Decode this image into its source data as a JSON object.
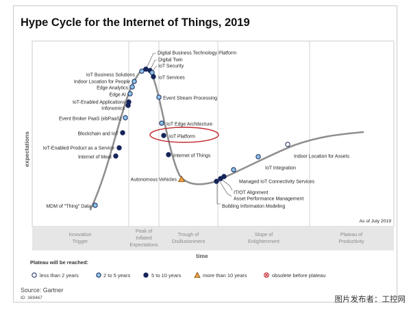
{
  "title": "Hype Cycle for the Internet of Things, 2019",
  "y_axis_label": "expectations",
  "x_axis_label": "time",
  "as_of": "As of July 2019",
  "phases": [
    {
      "line1": "Innovation",
      "line2": "Trigger",
      "line3": ""
    },
    {
      "line1": "Peak of",
      "line2": "Inflated",
      "line3": "Expectations"
    },
    {
      "line1": "Trough of",
      "line2": "Disillusionment",
      "line3": ""
    },
    {
      "line1": "Slope of",
      "line2": "Enlightenment",
      "line3": ""
    },
    {
      "line1": "Plateau of",
      "line2": "Productivity",
      "line3": ""
    }
  ],
  "legend": {
    "title": "Plateau will be reached:",
    "items": [
      {
        "key": "lt2",
        "label": "less than 2 years"
      },
      {
        "key": "2to5",
        "label": "2 to 5 years"
      },
      {
        "key": "5to10",
        "label": "5 to 10 years"
      },
      {
        "key": "gt10",
        "label": "more than 10 years"
      },
      {
        "key": "obsolete",
        "label": "obsolete before plateau"
      }
    ]
  },
  "colors": {
    "curve": "#8f8f8f",
    "lt2": "#ffffff",
    "2to5": "#8ec3e6",
    "5to10": "#15245a",
    "gt10": "#f0a040",
    "highlight": "#c0272d"
  },
  "technologies": [
    {
      "name": "Digital Business Technology Platform",
      "category": "5to10"
    },
    {
      "name": "Digital Twin",
      "category": "5to10"
    },
    {
      "name": "IoT Security",
      "category": "2to5"
    },
    {
      "name": "IoT Business Solutions",
      "category": "2to5"
    },
    {
      "name": "IoT Services",
      "category": "5to10"
    },
    {
      "name": "Indoor Location for People",
      "category": "2to5"
    },
    {
      "name": "Edge Analytics",
      "category": "2to5"
    },
    {
      "name": "Edge AI",
      "category": "2to5"
    },
    {
      "name": "IoT-Enabled Applications",
      "category": "5to10"
    },
    {
      "name": "Infonomics",
      "category": "5to10"
    },
    {
      "name": "Event Stream Processing",
      "category": "2to5"
    },
    {
      "name": "Event Broker PaaS (ebPaaS)",
      "category": "2to5"
    },
    {
      "name": "IoT Edge Architecture",
      "category": "2to5"
    },
    {
      "name": "Blockchain and IoT",
      "category": "5to10"
    },
    {
      "name": "IoT Platform",
      "category": "5to10",
      "highlighted": true
    },
    {
      "name": "IoT-Enabled Product as a Service",
      "category": "5to10"
    },
    {
      "name": "Internet of Things",
      "category": "5to10"
    },
    {
      "name": "Internet of Meat",
      "category": "5to10"
    },
    {
      "name": "Autonomous Vehicles",
      "category": "gt10"
    },
    {
      "name": "MDM of \"Thing\" Data",
      "category": "2to5"
    },
    {
      "name": "Indoor Location for Assets",
      "category": "lt2"
    },
    {
      "name": "IoT Integration",
      "category": "2to5"
    },
    {
      "name": "Managed IoT Connectivity Services",
      "category": "2to5"
    },
    {
      "name": "IT/OT Alignment",
      "category": "5to10"
    },
    {
      "name": "Asset Performance Management",
      "category": "5to10"
    },
    {
      "name": "Building Information Modeling",
      "category": "5to10"
    }
  ],
  "source": "Source: Gartner",
  "doc_id": "ID: 369467",
  "watermark": "图片发布者：工控网"
}
